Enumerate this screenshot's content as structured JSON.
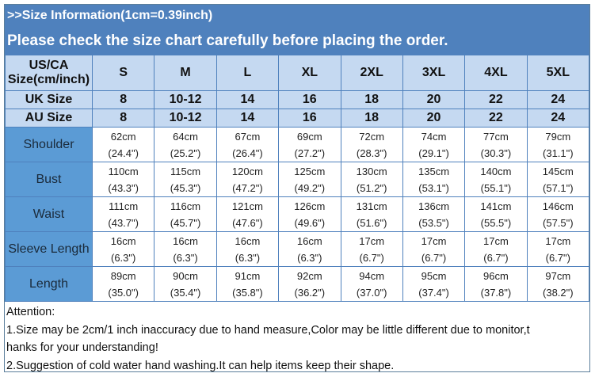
{
  "title": ">>Size Information(1cm=0.39inch)",
  "subtitle": "Please check the size chart carefully before placing the order.",
  "colors": {
    "title_bg": "#4f81bd",
    "header_bg": "#c5d9f1",
    "label_bg": "#5b9bd5",
    "border": "#4f81bd"
  },
  "header": {
    "label": [
      "US/CA",
      "Size(cm/inch)"
    ],
    "sizes": [
      "S",
      "M",
      "L",
      "XL",
      "2XL",
      "3XL",
      "4XL",
      "5XL"
    ]
  },
  "uk": {
    "label": "UK Size",
    "values": [
      "8",
      "10-12",
      "14",
      "16",
      "18",
      "20",
      "22",
      "24"
    ]
  },
  "au": {
    "label": "AU Size",
    "values": [
      "8",
      "10-12",
      "14",
      "16",
      "18",
      "20",
      "22",
      "24"
    ]
  },
  "rows": [
    {
      "label": "Shoulder",
      "cm": [
        "62cm",
        "64cm",
        "67cm",
        "69cm",
        "72cm",
        "74cm",
        "77cm",
        "79cm"
      ],
      "inch": [
        "(24.4\")",
        "(25.2\")",
        "(26.4\")",
        "(27.2\")",
        "(28.3\")",
        "(29.1\")",
        "(30.3\")",
        "(31.1\")"
      ]
    },
    {
      "label": "Bust",
      "cm": [
        "110cm",
        "115cm",
        "120cm",
        "125cm",
        "130cm",
        "135cm",
        "140cm",
        "145cm"
      ],
      "inch": [
        "(43.3\")",
        "(45.3\")",
        "(47.2\")",
        "(49.2\")",
        "(51.2\")",
        "(53.1\")",
        "(55.1\")",
        "(57.1\")"
      ]
    },
    {
      "label": "Waist",
      "cm": [
        "111cm",
        "116cm",
        "121cm",
        "126cm",
        "131cm",
        "136cm",
        "141cm",
        "146cm"
      ],
      "inch": [
        "(43.7\")",
        "(45.7\")",
        "(47.6\")",
        "(49.6\")",
        "(51.6\")",
        "(53.5\")",
        "(55.5\")",
        "(57.5\")"
      ]
    },
    {
      "label": "Sleeve Length",
      "cm": [
        "16cm",
        "16cm",
        "16cm",
        "16cm",
        "17cm",
        "17cm",
        "17cm",
        "17cm"
      ],
      "inch": [
        "(6.3\")",
        "(6.3\")",
        "(6.3\")",
        "(6.3\")",
        "(6.7\")",
        "(6.7\")",
        "(6.7\")",
        "(6.7\")"
      ]
    },
    {
      "label": "Length",
      "cm": [
        "89cm",
        "90cm",
        "91cm",
        "92cm",
        "94cm",
        "95cm",
        "96cm",
        "97cm"
      ],
      "inch": [
        "(35.0\")",
        "(35.4\")",
        "(35.8\")",
        "(36.2\")",
        "(37.0\")",
        "(37.4\")",
        "(37.8\")",
        "(38.2\")"
      ]
    }
  ],
  "attention": [
    "Attention:",
    "1.Size may be 2cm/1 inch inaccuracy due to hand measure,Color may be little different due to monitor,t",
    "hanks for your understanding!",
    "2.Suggestion of cold water hand washing.It can help items keep their shape."
  ]
}
